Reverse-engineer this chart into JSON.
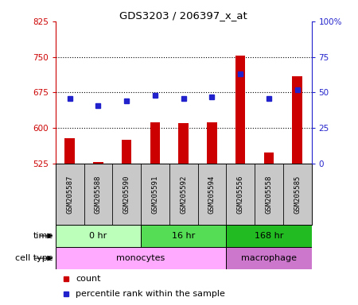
{
  "title": "GDS3203 / 206397_x_at",
  "samples": [
    "GSM205587",
    "GSM205588",
    "GSM205590",
    "GSM205591",
    "GSM205592",
    "GSM205594",
    "GSM205556",
    "GSM205558",
    "GSM205585"
  ],
  "counts": [
    578,
    528,
    575,
    612,
    610,
    613,
    753,
    548,
    710
  ],
  "percentiles": [
    46,
    41,
    44,
    48,
    46,
    47,
    63,
    46,
    52
  ],
  "ylim_left": [
    525,
    825
  ],
  "yticks_left": [
    525,
    600,
    675,
    750,
    825
  ],
  "ylim_right": [
    0,
    100
  ],
  "yticks_right": [
    0,
    25,
    50,
    75,
    100
  ],
  "bar_color": "#cc0000",
  "dot_color": "#2222cc",
  "bar_bottom": 525,
  "time_groups": [
    {
      "label": "0 hr",
      "start": 0,
      "end": 3,
      "color": "#bbffbb"
    },
    {
      "label": "16 hr",
      "start": 3,
      "end": 6,
      "color": "#55dd55"
    },
    {
      "label": "168 hr",
      "start": 6,
      "end": 9,
      "color": "#22bb22"
    }
  ],
  "cell_groups": [
    {
      "label": "monocytes",
      "start": 0,
      "end": 6,
      "color": "#ffaaff"
    },
    {
      "label": "macrophage",
      "start": 6,
      "end": 9,
      "color": "#cc77cc"
    }
  ],
  "legend_count_color": "#cc0000",
  "legend_pct_color": "#2222cc",
  "left_axis_color": "#cc0000",
  "right_axis_color": "#2222cc",
  "sample_bg_color": "#c8c8c8",
  "grid_color": "#000000",
  "bar_width": 0.35
}
